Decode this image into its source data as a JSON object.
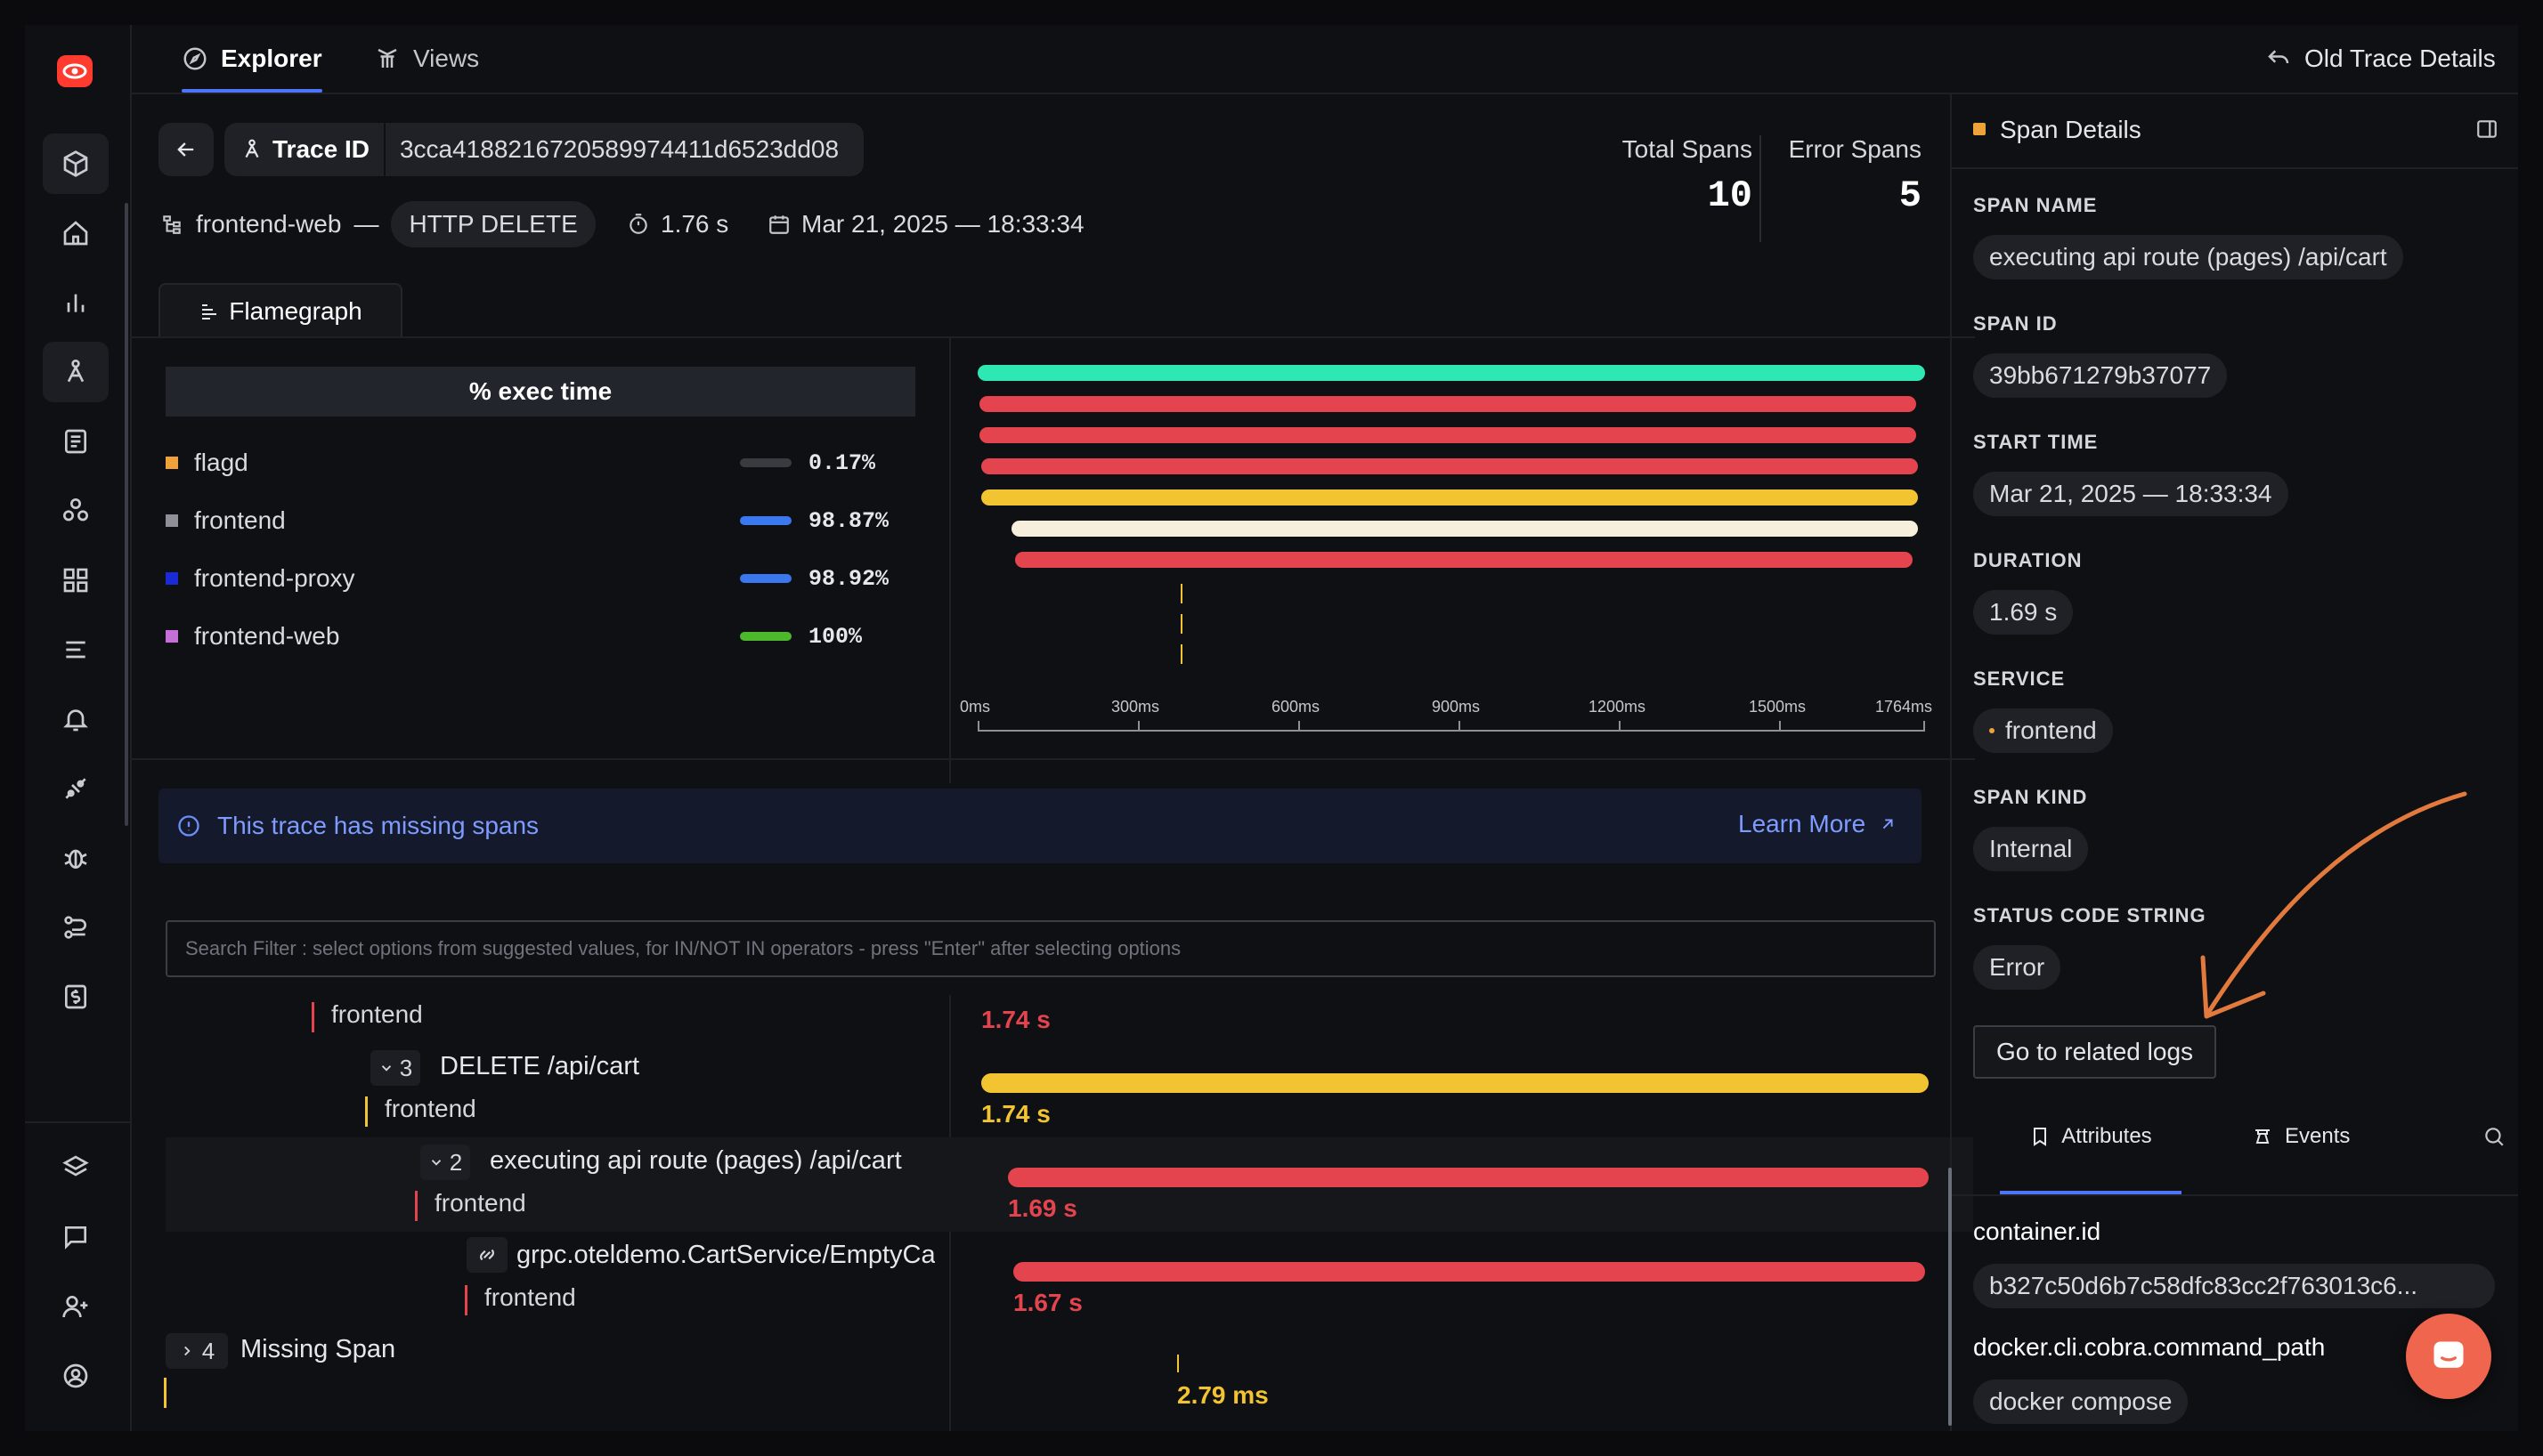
{
  "colors": {
    "accent": "#4e74f8",
    "green_span": "#2ee8b4",
    "red_span": "#e4444e",
    "yellow_span": "#f2c431",
    "cream_span": "#f5efdc",
    "brand": "#ff3b30"
  },
  "topbar": {
    "tab_explorer": "Explorer",
    "tab_views": "Views",
    "old_trace_details": "Old Trace Details"
  },
  "trace": {
    "trace_id_label": "Trace ID",
    "trace_id": "3cca418821672058997441 1d6523dd08",
    "trace_id_value": "3cca4188216720589974411d6523dd08",
    "service": "frontend-web",
    "dash": "—",
    "method": "HTTP DELETE",
    "duration": "1.76 s",
    "datetime": "Mar 21, 2025 — 18:33:34",
    "total_spans_label": "Total Spans",
    "total_spans": "10",
    "error_spans_label": "Error Spans",
    "error_spans": "5"
  },
  "flamegraph": {
    "tab_label": "Flamegraph",
    "exec_time_header": "% exec time",
    "legend": [
      {
        "name": "flagd",
        "pct": "0.17%",
        "swatch": "#f0a23a",
        "bar": "#3a3b40"
      },
      {
        "name": "frontend",
        "pct": "98.87%",
        "swatch": "#8e9097",
        "bar": "#3b78f0"
      },
      {
        "name": "frontend-proxy",
        "pct": "98.92%",
        "swatch": "#1a2ad6",
        "bar": "#3b78f0"
      },
      {
        "name": "frontend-web",
        "pct": "100%",
        "swatch": "#c46fd6",
        "bar": "#4cb82c"
      }
    ],
    "ticks": [
      "0ms",
      "300ms",
      "600ms",
      "900ms",
      "1200ms",
      "1500ms",
      "1764ms"
    ]
  },
  "banner": {
    "message": "This trace has missing spans",
    "learn_more": "Learn More"
  },
  "search": {
    "placeholder": "Search Filter : select options from suggested values, for IN/NOT IN operators - press \"Enter\" after selecting options"
  },
  "tree": [
    {
      "service": "frontend",
      "duration": "1.74 s"
    },
    {
      "count": "3",
      "name": "DELETE /api/cart",
      "service": "frontend",
      "duration": "1.74 s"
    },
    {
      "count": "2",
      "name": "executing api route (pages) /api/cart",
      "service": "frontend",
      "duration": "1.69 s"
    },
    {
      "name": "grpc.oteldemo.CartService/EmptyCart",
      "service": "frontend",
      "duration": "1.67 s"
    },
    {
      "count": "4",
      "name": "Missing Span",
      "duration": "2.79 ms"
    }
  ],
  "span_details": {
    "title": "Span Details",
    "span_name_label": "SPAN NAME",
    "span_name": "executing api route (pages) /api/cart",
    "span_id_label": "SPAN ID",
    "span_id": "39bb671279b37077",
    "start_time_label": "START TIME",
    "start_time": "Mar 21, 2025 — 18:33:34",
    "duration_label": "DURATION",
    "duration": "1.69 s",
    "service_label": "SERVICE",
    "service": "frontend",
    "span_kind_label": "SPAN KIND",
    "span_kind": "Internal",
    "status_label": "STATUS CODE STRING",
    "status": "Error",
    "related_logs": "Go to related logs",
    "tab_attributes": "Attributes",
    "tab_events": "Events",
    "attributes": [
      {
        "key": "container.id",
        "value": "b327c50d6b7c58dfc83cc2f763013c6..."
      },
      {
        "key": "docker.cli.cobra.command_path",
        "value": "docker compose"
      }
    ]
  }
}
